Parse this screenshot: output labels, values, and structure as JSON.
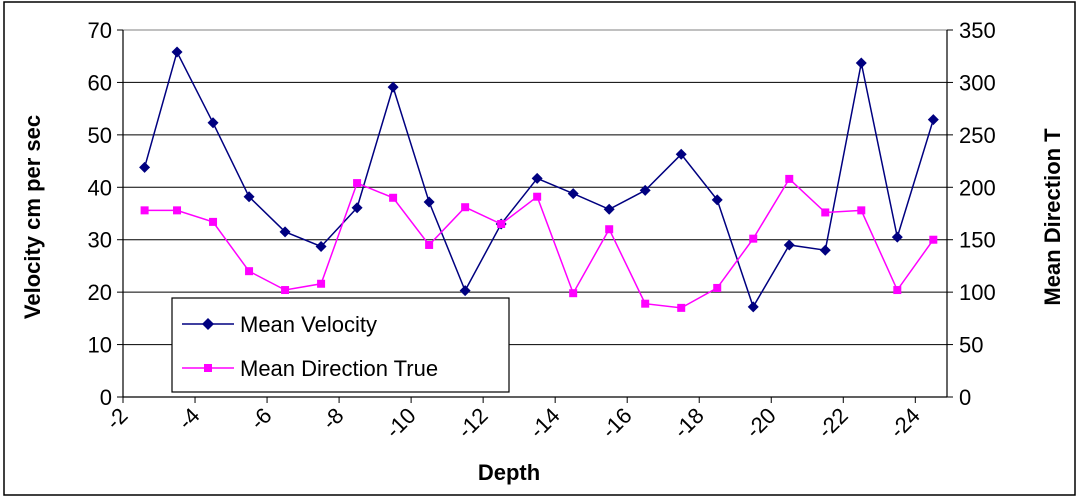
{
  "chart_data": {
    "type": "line",
    "title": "",
    "xlabel": "Depth",
    "ylabel": "Velocity cm per sec",
    "y2label": "Mean Direction T",
    "x": [
      -2.6,
      -3.5,
      -4.5,
      -5.5,
      -6.5,
      -7.5,
      -8.5,
      -9.5,
      -10.5,
      -11.5,
      -12.5,
      -13.5,
      -14.5,
      -15.5,
      -16.5,
      -17.5,
      -18.5,
      -19.5,
      -20.5,
      -21.5,
      -22.5,
      -23.5,
      -24.5
    ],
    "xticks": [
      "-2",
      "-4",
      "-6",
      "-8",
      "-10",
      "-12",
      "-14",
      "-16",
      "-18",
      "-20",
      "-22",
      "-24"
    ],
    "xtick_values": [
      -2,
      -4,
      -6,
      -8,
      -10,
      -12,
      -14,
      -16,
      -18,
      -20,
      -22,
      -24
    ],
    "xlim": [
      -2,
      -24.88
    ],
    "ylim": [
      0,
      70
    ],
    "yticks": [
      0,
      10,
      20,
      30,
      40,
      50,
      60,
      70
    ],
    "y2lim": [
      0,
      350
    ],
    "y2ticks": [
      0,
      50,
      100,
      150,
      200,
      250,
      300,
      350
    ],
    "grid": true,
    "legend_position": "bottom-left",
    "series": [
      {
        "name": "Mean Velocity",
        "axis": "left",
        "color": "#000080",
        "marker": "diamond",
        "values": [
          43.8,
          65.8,
          52.3,
          38.2,
          31.5,
          28.7,
          36.1,
          59.1,
          37.2,
          20.3,
          33.0,
          41.7,
          38.8,
          35.8,
          39.4,
          46.3,
          37.6,
          17.2,
          29.0,
          28.0,
          63.7,
          30.5,
          52.9
        ]
      },
      {
        "name": "Mean Direction True",
        "axis": "right",
        "color": "#ff00ff",
        "marker": "square",
        "values": [
          178,
          178,
          167,
          120,
          102,
          108,
          204,
          190,
          145,
          181,
          165,
          191,
          99,
          160,
          89,
          85,
          104,
          151,
          208,
          176,
          178,
          102,
          150
        ]
      }
    ]
  }
}
